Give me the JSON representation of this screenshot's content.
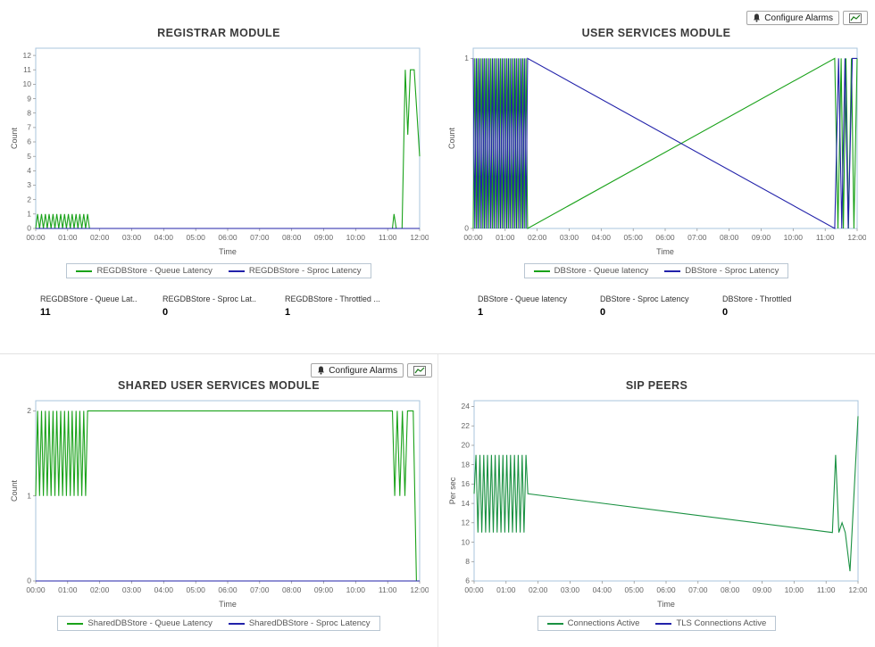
{
  "toolbar": {
    "configure_alarms": "Configure Alarms"
  },
  "panels": [
    {
      "title": "REGISTRAR MODULE",
      "stats": [
        {
          "label": "REGDBStore - Queue Lat..",
          "value": "11"
        },
        {
          "label": "REGDBStore - Sproc Lat..",
          "value": "0"
        },
        {
          "label": "REGDBStore - Throttled ...",
          "value": "1"
        }
      ]
    },
    {
      "title": "USER SERVICES MODULE",
      "stats": [
        {
          "label": "DBStore - Queue latency",
          "value": "1"
        },
        {
          "label": "DBStore - Sproc Latency",
          "value": "0"
        },
        {
          "label": "DBStore - Throttled",
          "value": "0"
        }
      ]
    },
    {
      "title": "SHARED USER SERVICES MODULE"
    },
    {
      "title": "SIP PEERS"
    }
  ],
  "chart_data": [
    {
      "type": "line",
      "title": "REGISTRAR MODULE",
      "xlabel": "Time",
      "ylabel": "Count",
      "xlim": [
        0,
        12
      ],
      "ylim": [
        0,
        12.5
      ],
      "xticks": [
        "00:00",
        "01:00",
        "02:00",
        "03:00",
        "04:00",
        "05:00",
        "06:00",
        "07:00",
        "08:00",
        "09:00",
        "10:00",
        "11:00",
        "12:00"
      ],
      "yticks": [
        0,
        1,
        2,
        3,
        4,
        5,
        6,
        7,
        8,
        9,
        10,
        11,
        12
      ],
      "grid": false,
      "legend_position": "bottom",
      "series": [
        {
          "name": "REGDBStore - Queue Latency",
          "color": "#1aa21a",
          "points": [
            [
              0,
              0
            ],
            [
              0.06,
              1
            ],
            [
              0.12,
              0
            ],
            [
              0.18,
              1
            ],
            [
              0.24,
              0
            ],
            [
              0.3,
              1
            ],
            [
              0.36,
              0
            ],
            [
              0.42,
              1
            ],
            [
              0.48,
              0
            ],
            [
              0.54,
              1
            ],
            [
              0.6,
              0
            ],
            [
              0.66,
              1
            ],
            [
              0.72,
              0
            ],
            [
              0.78,
              1
            ],
            [
              0.84,
              0
            ],
            [
              0.9,
              1
            ],
            [
              0.96,
              0
            ],
            [
              1.02,
              1
            ],
            [
              1.08,
              0
            ],
            [
              1.14,
              1
            ],
            [
              1.2,
              0
            ],
            [
              1.26,
              1
            ],
            [
              1.32,
              0
            ],
            [
              1.38,
              1
            ],
            [
              1.44,
              0
            ],
            [
              1.5,
              1
            ],
            [
              1.56,
              0
            ],
            [
              1.62,
              1
            ],
            [
              1.68,
              0
            ],
            [
              11.15,
              0
            ],
            [
              11.2,
              1
            ],
            [
              11.27,
              0
            ],
            [
              11.45,
              0
            ],
            [
              11.55,
              11
            ],
            [
              11.63,
              6.5
            ],
            [
              11.71,
              11
            ],
            [
              11.83,
              11
            ],
            [
              12,
              5
            ]
          ]
        },
        {
          "name": "REGDBStore - Sproc Latency",
          "color": "#2222aa",
          "points": [
            [
              0,
              0
            ],
            [
              12,
              0
            ]
          ]
        }
      ]
    },
    {
      "type": "line",
      "title": "USER SERVICES MODULE",
      "xlabel": "Time",
      "ylabel": "Count",
      "xlim": [
        0,
        12
      ],
      "ylim": [
        0,
        1.06
      ],
      "xticks": [
        "00:00",
        "01:00",
        "02:00",
        "03:00",
        "04:00",
        "05:00",
        "06:00",
        "07:00",
        "08:00",
        "09:00",
        "10:00",
        "11:00",
        "12:00"
      ],
      "yticks": [
        0,
        1
      ],
      "grid": false,
      "legend_position": "bottom",
      "series": [
        {
          "name": "DBStore - Queue latency",
          "color": "#1aa21a",
          "points": [
            [
              0,
              0
            ],
            [
              0.05,
              1
            ],
            [
              0.1,
              0
            ],
            [
              0.15,
              1
            ],
            [
              0.2,
              0
            ],
            [
              0.25,
              1
            ],
            [
              0.3,
              0
            ],
            [
              0.35,
              1
            ],
            [
              0.4,
              0
            ],
            [
              0.45,
              1
            ],
            [
              0.5,
              0
            ],
            [
              0.55,
              1
            ],
            [
              0.6,
              0
            ],
            [
              0.65,
              1
            ],
            [
              0.7,
              0
            ],
            [
              0.75,
              1
            ],
            [
              0.8,
              0
            ],
            [
              0.85,
              1
            ],
            [
              0.9,
              0
            ],
            [
              0.95,
              1
            ],
            [
              1,
              0
            ],
            [
              1.05,
              1
            ],
            [
              1.1,
              0
            ],
            [
              1.15,
              1
            ],
            [
              1.2,
              0
            ],
            [
              1.25,
              1
            ],
            [
              1.3,
              0
            ],
            [
              1.35,
              1
            ],
            [
              1.4,
              0
            ],
            [
              1.45,
              1
            ],
            [
              1.5,
              0
            ],
            [
              1.55,
              1
            ],
            [
              1.6,
              0
            ],
            [
              1.65,
              1
            ],
            [
              1.7,
              0
            ],
            [
              11.3,
              1
            ],
            [
              11.4,
              0
            ],
            [
              11.5,
              1
            ],
            [
              11.57,
              0
            ],
            [
              11.65,
              1
            ],
            [
              11.73,
              0
            ],
            [
              11.82,
              1
            ],
            [
              11.9,
              0
            ],
            [
              12,
              1
            ]
          ]
        },
        {
          "name": "DBStore - Sproc Latency",
          "color": "#2222aa",
          "points": [
            [
              0,
              1
            ],
            [
              0.05,
              0
            ],
            [
              0.1,
              1
            ],
            [
              0.15,
              0
            ],
            [
              0.2,
              1
            ],
            [
              0.25,
              0
            ],
            [
              0.3,
              1
            ],
            [
              0.35,
              0
            ],
            [
              0.4,
              1
            ],
            [
              0.45,
              0
            ],
            [
              0.5,
              1
            ],
            [
              0.55,
              0
            ],
            [
              0.6,
              1
            ],
            [
              0.65,
              0
            ],
            [
              0.7,
              1
            ],
            [
              0.75,
              0
            ],
            [
              0.8,
              1
            ],
            [
              0.85,
              0
            ],
            [
              0.9,
              1
            ],
            [
              0.95,
              0
            ],
            [
              1,
              1
            ],
            [
              1.05,
              0
            ],
            [
              1.1,
              1
            ],
            [
              1.15,
              0
            ],
            [
              1.2,
              1
            ],
            [
              1.25,
              0
            ],
            [
              1.3,
              1
            ],
            [
              1.35,
              0
            ],
            [
              1.4,
              1
            ],
            [
              1.45,
              0
            ],
            [
              1.5,
              1
            ],
            [
              1.55,
              0
            ],
            [
              1.6,
              1
            ],
            [
              1.65,
              0
            ],
            [
              1.7,
              1
            ],
            [
              11.3,
              0
            ],
            [
              11.42,
              1
            ],
            [
              11.52,
              0
            ],
            [
              11.62,
              1
            ],
            [
              11.72,
              0
            ],
            [
              11.85,
              1
            ],
            [
              12,
              1
            ]
          ]
        }
      ]
    },
    {
      "type": "line",
      "title": "SHARED USER SERVICES MODULE",
      "xlabel": "Time",
      "ylabel": "Count",
      "xlim": [
        0,
        12
      ],
      "ylim": [
        0,
        2.12
      ],
      "xticks": [
        "00:00",
        "01:00",
        "02:00",
        "03:00",
        "04:00",
        "05:00",
        "06:00",
        "07:00",
        "08:00",
        "09:00",
        "10:00",
        "11:00",
        "12:00"
      ],
      "yticks": [
        0,
        1,
        2
      ],
      "grid": false,
      "legend_position": "bottom",
      "series": [
        {
          "name": "SharedDBStore - Queue Latency",
          "color": "#1aa21a",
          "points": [
            [
              0,
              1
            ],
            [
              0.06,
              2
            ],
            [
              0.12,
              1
            ],
            [
              0.18,
              2
            ],
            [
              0.24,
              1
            ],
            [
              0.3,
              2
            ],
            [
              0.36,
              1
            ],
            [
              0.42,
              2
            ],
            [
              0.48,
              1
            ],
            [
              0.54,
              2
            ],
            [
              0.6,
              1
            ],
            [
              0.66,
              2
            ],
            [
              0.72,
              1
            ],
            [
              0.78,
              2
            ],
            [
              0.84,
              1
            ],
            [
              0.9,
              2
            ],
            [
              0.96,
              1
            ],
            [
              1.02,
              2
            ],
            [
              1.08,
              1
            ],
            [
              1.14,
              2
            ],
            [
              1.2,
              1
            ],
            [
              1.26,
              2
            ],
            [
              1.32,
              1
            ],
            [
              1.38,
              2
            ],
            [
              1.44,
              1
            ],
            [
              1.5,
              2
            ],
            [
              1.56,
              1
            ],
            [
              1.62,
              2
            ],
            [
              1.68,
              2
            ],
            [
              11.15,
              2
            ],
            [
              11.22,
              1
            ],
            [
              11.3,
              2
            ],
            [
              11.38,
              1
            ],
            [
              11.46,
              2
            ],
            [
              11.54,
              1
            ],
            [
              11.62,
              2
            ],
            [
              11.8,
              2
            ],
            [
              11.9,
              0
            ],
            [
              12,
              0
            ]
          ]
        },
        {
          "name": "SharedDBStore - Sproc Latency",
          "color": "#2222aa",
          "points": [
            [
              0,
              0
            ],
            [
              12,
              0
            ]
          ]
        }
      ]
    },
    {
      "type": "line",
      "title": "SIP PEERS",
      "xlabel": "Time",
      "ylabel": "Per sec",
      "xlim": [
        0,
        12
      ],
      "ylim": [
        6,
        24.6
      ],
      "xticks": [
        "00:00",
        "01:00",
        "02:00",
        "03:00",
        "04:00",
        "05:00",
        "06:00",
        "07:00",
        "08:00",
        "09:00",
        "10:00",
        "11:00",
        "12:00"
      ],
      "yticks": [
        6,
        8,
        10,
        12,
        14,
        16,
        18,
        20,
        22,
        24
      ],
      "grid": false,
      "legend_position": "bottom",
      "series": [
        {
          "name": "Connections Active",
          "color": "#1a9142",
          "points": [
            [
              0,
              15
            ],
            [
              0.06,
              19
            ],
            [
              0.12,
              11
            ],
            [
              0.18,
              19
            ],
            [
              0.24,
              11
            ],
            [
              0.3,
              19
            ],
            [
              0.36,
              11
            ],
            [
              0.42,
              19
            ],
            [
              0.48,
              11
            ],
            [
              0.54,
              19
            ],
            [
              0.6,
              11
            ],
            [
              0.66,
              19
            ],
            [
              0.72,
              11
            ],
            [
              0.78,
              19
            ],
            [
              0.84,
              11
            ],
            [
              0.9,
              19
            ],
            [
              0.96,
              11
            ],
            [
              1.02,
              19
            ],
            [
              1.08,
              11
            ],
            [
              1.14,
              19
            ],
            [
              1.2,
              11
            ],
            [
              1.26,
              19
            ],
            [
              1.32,
              11
            ],
            [
              1.38,
              19
            ],
            [
              1.44,
              11
            ],
            [
              1.5,
              19
            ],
            [
              1.56,
              11
            ],
            [
              1.62,
              19
            ],
            [
              1.68,
              15
            ],
            [
              11.2,
              11
            ],
            [
              11.3,
              19
            ],
            [
              11.4,
              11
            ],
            [
              11.5,
              12
            ],
            [
              11.6,
              11
            ],
            [
              11.75,
              7
            ],
            [
              12,
              23
            ]
          ]
        },
        {
          "name": "TLS Connections Active",
          "color": "#2222aa",
          "points": []
        }
      ]
    }
  ]
}
